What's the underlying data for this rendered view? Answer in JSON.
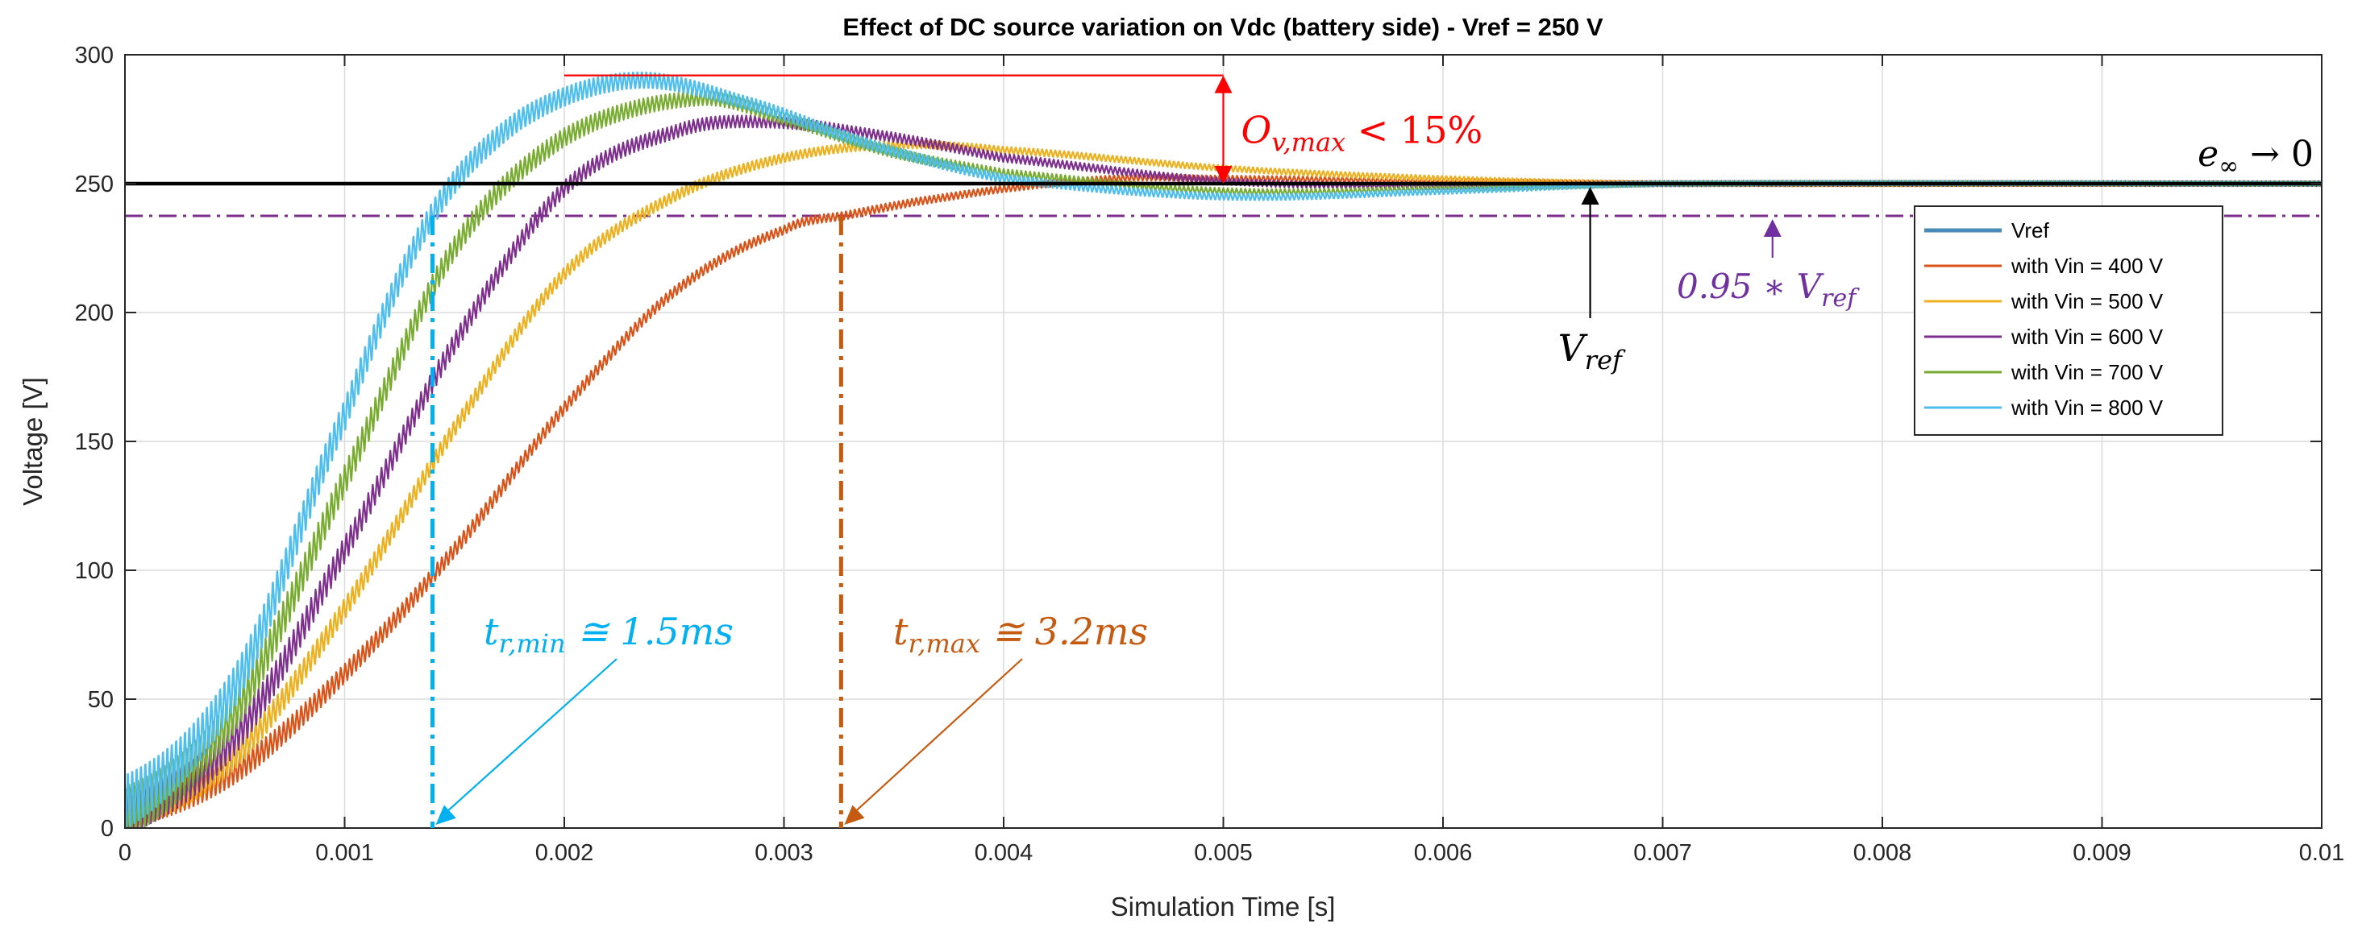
{
  "chart_data": {
    "type": "line",
    "title": "Effect of DC source variation on Vdc (battery side) - Vref = 250 V",
    "xlabel": "Simulation Time [s]",
    "ylabel": "Voltage [V]",
    "xlim": [
      0,
      0.01
    ],
    "ylim": [
      0,
      300
    ],
    "grid": true,
    "x_ticks": [
      0,
      0.001,
      0.002,
      0.003,
      0.004,
      0.005,
      0.006,
      0.007,
      0.008,
      0.009,
      0.01
    ],
    "x_tick_labels": [
      "0",
      "0.001",
      "0.002",
      "0.003",
      "0.004",
      "0.005",
      "0.006",
      "0.007",
      "0.008",
      "0.009",
      "0.01"
    ],
    "y_ticks": [
      0,
      50,
      100,
      150,
      200,
      250,
      300
    ],
    "y_tick_labels": [
      "0",
      "50",
      "100",
      "150",
      "200",
      "250",
      "300"
    ],
    "legend_position": "right",
    "reference": {
      "name": "Vref",
      "value": 250,
      "color": "#000000"
    },
    "threshold": {
      "name": "0.95 * Vref",
      "value": 237.5,
      "color": "#7e2f8e"
    },
    "series": [
      {
        "name": "Vref",
        "legend_label": "Vref",
        "color": "#4a8ab8",
        "legend_only": true
      },
      {
        "name": "Vin = 400 V",
        "legend_label": "with Vin = 400 V",
        "color": "#d95319",
        "tr": 0.0033,
        "peak_t": 0.0045,
        "peak": 252,
        "ripple_start": 14,
        "ripple_end": 2,
        "points": [
          [
            0,
            6
          ],
          [
            0.0005,
            22
          ],
          [
            0.001,
            60
          ],
          [
            0.0015,
            108
          ],
          [
            0.002,
            163
          ],
          [
            0.0025,
            208
          ],
          [
            0.003,
            232
          ],
          [
            0.0033,
            238
          ],
          [
            0.0036,
            243
          ],
          [
            0.004,
            248
          ],
          [
            0.0045,
            252
          ],
          [
            0.005,
            252
          ],
          [
            0.006,
            251
          ],
          [
            0.007,
            250
          ],
          [
            0.01,
            250
          ]
        ]
      },
      {
        "name": "Vin = 500 V",
        "legend_label": "with Vin = 500 V",
        "color": "#edb120",
        "tr": 0.0024,
        "peak_t": 0.0035,
        "peak": 265,
        "ripple_start": 16,
        "ripple_end": 2,
        "points": [
          [
            0,
            6
          ],
          [
            0.0005,
            28
          ],
          [
            0.001,
            85
          ],
          [
            0.0015,
            155
          ],
          [
            0.002,
            215
          ],
          [
            0.0025,
            245
          ],
          [
            0.003,
            260
          ],
          [
            0.0035,
            265
          ],
          [
            0.004,
            263
          ],
          [
            0.005,
            256
          ],
          [
            0.006,
            252
          ],
          [
            0.007,
            250
          ],
          [
            0.01,
            250
          ]
        ]
      },
      {
        "name": "Vin = 600 V",
        "legend_label": "with Vin = 600 V",
        "color": "#7e2f8e",
        "tr": 0.00195,
        "peak_t": 0.0029,
        "peak": 274,
        "ripple_start": 18,
        "ripple_end": 2,
        "points": [
          [
            0,
            6
          ],
          [
            0.0005,
            35
          ],
          [
            0.001,
            108
          ],
          [
            0.0015,
            188
          ],
          [
            0.002,
            248
          ],
          [
            0.0025,
            270
          ],
          [
            0.0029,
            274
          ],
          [
            0.0035,
            268
          ],
          [
            0.004,
            260
          ],
          [
            0.005,
            251
          ],
          [
            0.006,
            249
          ],
          [
            0.007,
            250
          ],
          [
            0.01,
            250
          ]
        ]
      },
      {
        "name": "Vin = 700 V",
        "legend_label": "with Vin = 700 V",
        "color": "#77ac30",
        "tr": 0.0016,
        "peak_t": 0.0026,
        "peak": 283,
        "ripple_start": 22,
        "ripple_end": 2,
        "points": [
          [
            0,
            6
          ],
          [
            0.0005,
            45
          ],
          [
            0.001,
            135
          ],
          [
            0.0015,
            225
          ],
          [
            0.002,
            268
          ],
          [
            0.0026,
            283
          ],
          [
            0.003,
            275
          ],
          [
            0.0035,
            262
          ],
          [
            0.004,
            254
          ],
          [
            0.005,
            247
          ],
          [
            0.006,
            248
          ],
          [
            0.007,
            250
          ],
          [
            0.01,
            250
          ]
        ]
      },
      {
        "name": "Vin = 800 V",
        "legend_label": "with Vin = 800 V",
        "color": "#4dbeee",
        "tr": 0.0014,
        "peak_t": 0.0023,
        "peak": 290,
        "ripple_start": 26,
        "ripple_end": 2,
        "points": [
          [
            0,
            10
          ],
          [
            0.0005,
            55
          ],
          [
            0.001,
            160
          ],
          [
            0.0014,
            238
          ],
          [
            0.0018,
            275
          ],
          [
            0.0023,
            290
          ],
          [
            0.0028,
            282
          ],
          [
            0.0034,
            265
          ],
          [
            0.004,
            252
          ],
          [
            0.005,
            245
          ],
          [
            0.006,
            247
          ],
          [
            0.007,
            250
          ],
          [
            0.01,
            250
          ]
        ]
      }
    ],
    "annotations": {
      "overshoot": {
        "text": "O",
        "sub": "v,max",
        "suffix": " < 15%",
        "color": "#ff0000",
        "x_from": 0.002,
        "x_to": 0.005,
        "y_top": 292,
        "y_bottom": 250
      },
      "e_inf": {
        "text": "e",
        "sub": "∞",
        "suffix": " → 0",
        "color": "#000000"
      },
      "vref_label": {
        "text": "V",
        "sub": "ref",
        "color": "#000000",
        "arrow_x": 0.00667
      },
      "threshold_label": {
        "text": "0.95 ∗ V",
        "sub": "ref",
        "color": "#7030a0",
        "arrow_x": 0.0075
      },
      "tr_min": {
        "text": "t",
        "sub": "r,min",
        "suffix": " ≅ 1.5ms",
        "color": "#00b0f0",
        "x": 0.0014
      },
      "tr_max": {
        "text": "t",
        "sub": "r,max",
        "suffix": " ≅ 3.2ms",
        "color": "#c55a11",
        "x": 0.00326
      }
    }
  }
}
